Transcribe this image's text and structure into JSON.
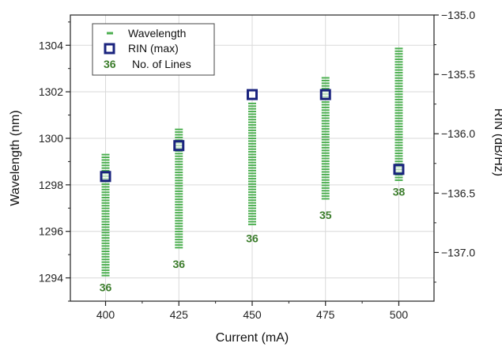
{
  "chart_data": {
    "type": "scatter",
    "xlabel": "Current (mA)",
    "ylabel_left": "Wavelength (nm)",
    "ylabel_right": "RIN (dB/Hz)",
    "x_ticks": [
      "400",
      "425",
      "450",
      "475",
      "500"
    ],
    "y_left_ticks": [
      "1294",
      "1296",
      "1298",
      "1300",
      "1302",
      "1304"
    ],
    "y_right_ticks": [
      "−135.0",
      "−135.5",
      "−136.0",
      "−136.5",
      "−137.0"
    ],
    "xlim": [
      388,
      512
    ],
    "ylim_left": [
      1293.0,
      1305.3
    ],
    "ylim_right": [
      -137.41,
      -135.0
    ],
    "grid": true,
    "legend": {
      "position": "top-left",
      "entries": [
        {
          "marker": "dash",
          "label": "Wavelength"
        },
        {
          "marker": "square",
          "label": "RIN (max)"
        },
        {
          "marker": "text",
          "marker_text": "36",
          "label": "No. of Lines"
        }
      ]
    },
    "series": [
      {
        "name": "Wavelength",
        "color": "#4caf50",
        "ranges": [
          {
            "x": 400,
            "y_min": 1294.1,
            "y_max": 1299.3
          },
          {
            "x": 425,
            "y_min": 1295.3,
            "y_max": 1300.4
          },
          {
            "x": 450,
            "y_min": 1296.3,
            "y_max": 1301.6
          },
          {
            "x": 475,
            "y_min": 1297.4,
            "y_max": 1302.6
          },
          {
            "x": 500,
            "y_min": 1298.2,
            "y_max": 1303.9
          }
        ]
      },
      {
        "name": "RIN (max)",
        "color": "#1a237e",
        "axis": "right",
        "points": [
          {
            "x": 400,
            "y": -136.36
          },
          {
            "x": 425,
            "y": -136.1
          },
          {
            "x": 450,
            "y": -135.67
          },
          {
            "x": 475,
            "y": -135.67
          },
          {
            "x": 500,
            "y": -136.3
          }
        ]
      }
    ],
    "line_counts": [
      {
        "x": 400,
        "label": "36",
        "y": 1293.6
      },
      {
        "x": 425,
        "label": "36",
        "y": 1294.6
      },
      {
        "x": 450,
        "label": "36",
        "y": 1295.7
      },
      {
        "x": 475,
        "label": "35",
        "y": 1296.7
      },
      {
        "x": 500,
        "label": "38",
        "y": 1297.7
      }
    ],
    "count_color": "#3c7d2c"
  }
}
